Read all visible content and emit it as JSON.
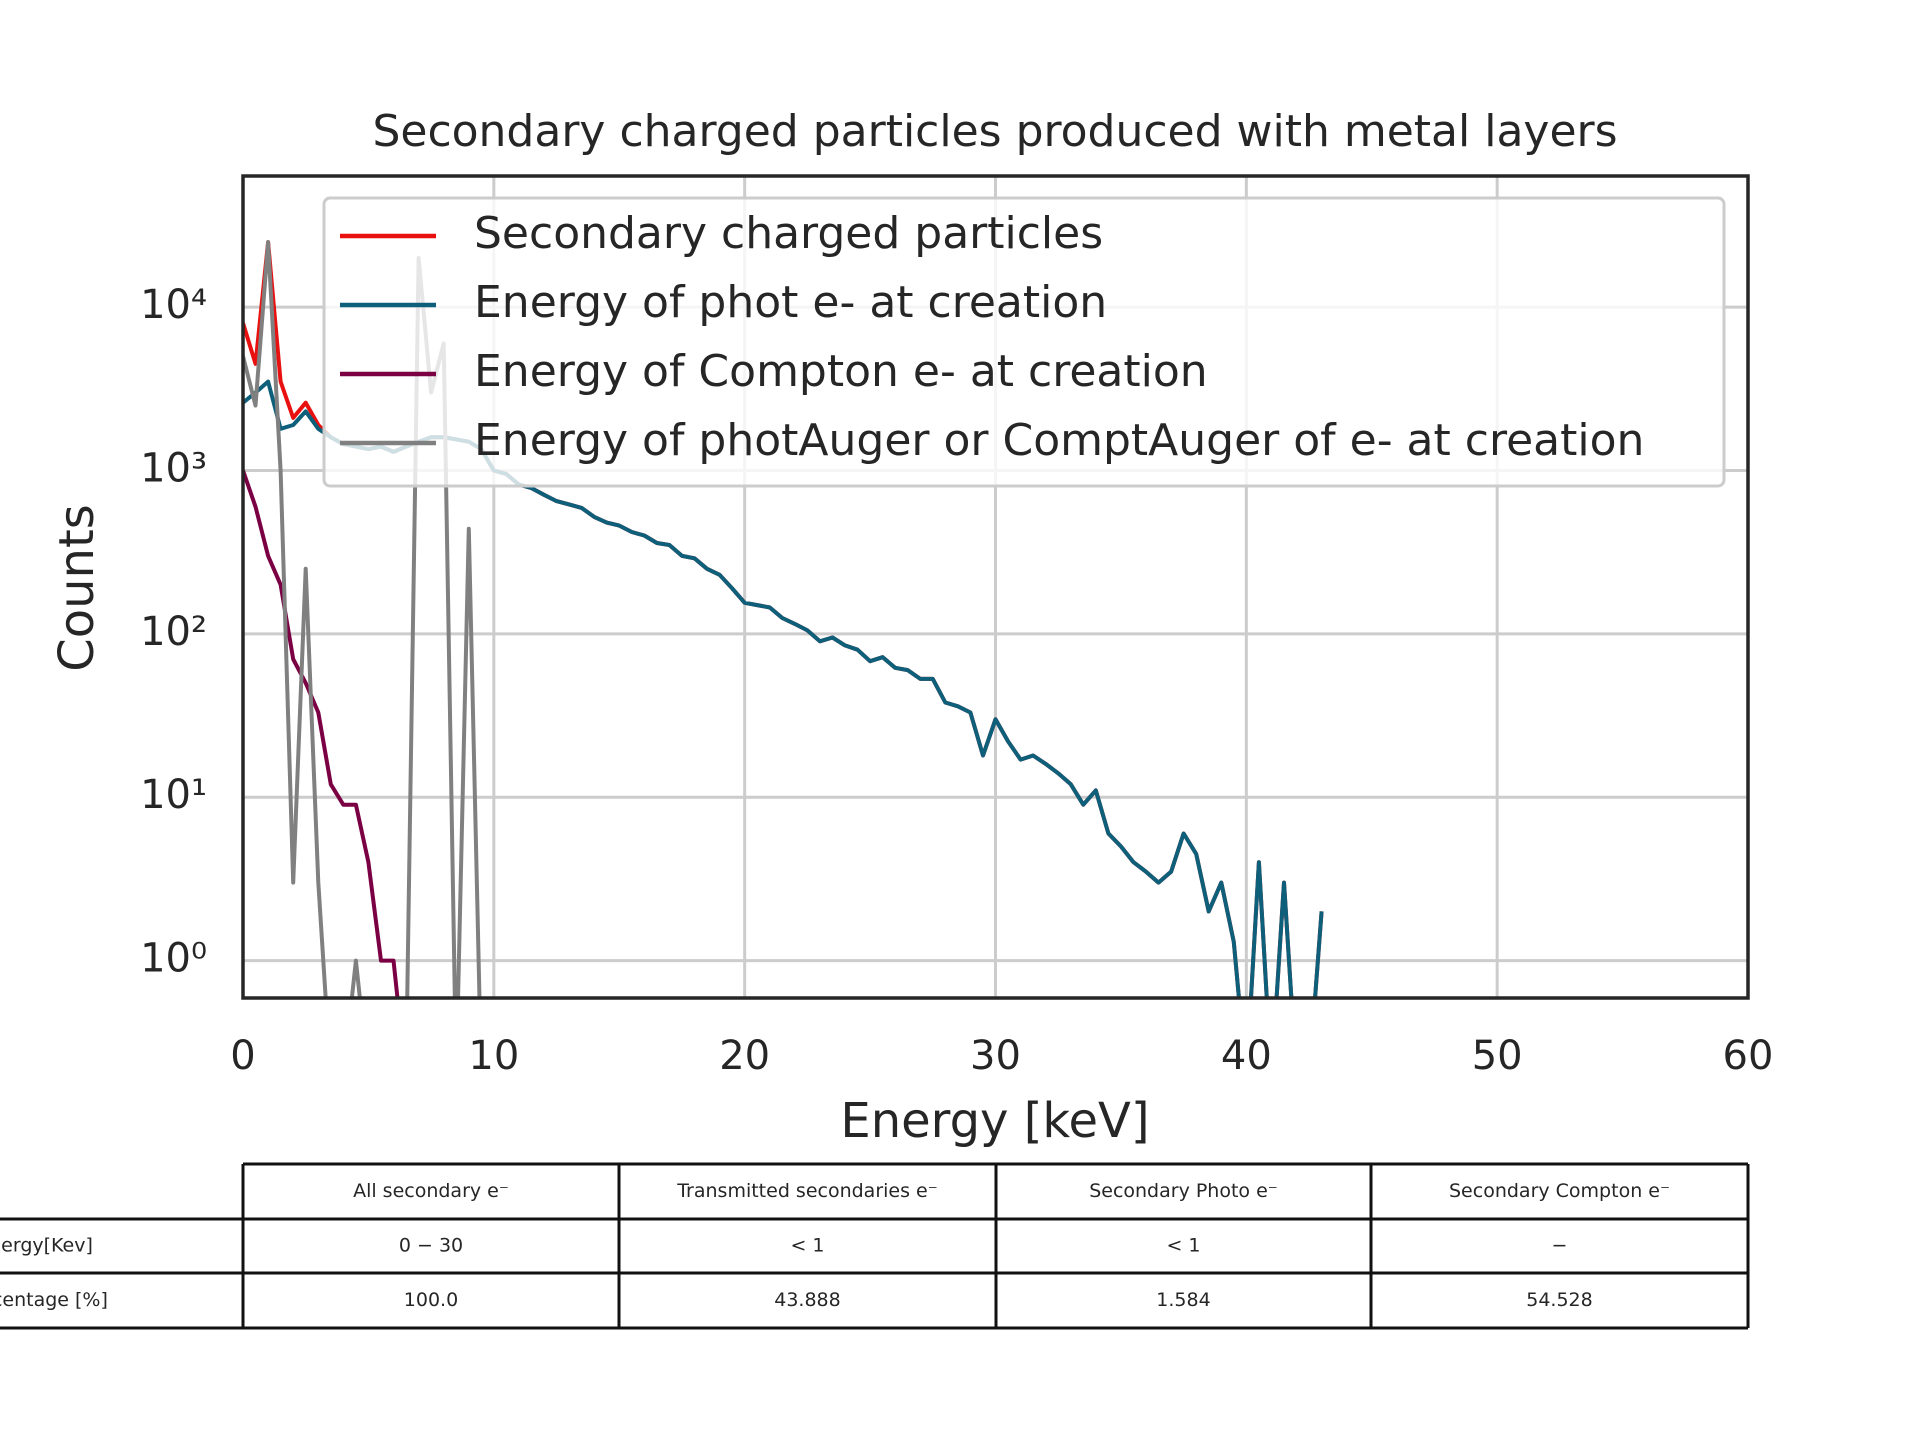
{
  "chart_data": {
    "type": "line",
    "title": "Secondary charged particles produced with metal layers",
    "x_label": "Energy [keV]",
    "y_label": "Counts",
    "log_scale_y": true,
    "grid": true,
    "legend": "upper right",
    "x": [
      0,
      0.5,
      1,
      1.5,
      2,
      2.5,
      3,
      3.5,
      4,
      4.5,
      5,
      5.5,
      6,
      6.5,
      7,
      7.5,
      8,
      8.5,
      9,
      9.5,
      10,
      10.5,
      11,
      11.5,
      12,
      12.5,
      13,
      13.5,
      14,
      14.5,
      15,
      15.5,
      16,
      16.5,
      17,
      17.5,
      18,
      18.5,
      19,
      19.5,
      20,
      20.5,
      21,
      21.5,
      22,
      22.5,
      23,
      23.5,
      24,
      24.5,
      25,
      25.5,
      26,
      26.5,
      27,
      27.5,
      28,
      28.5,
      29,
      29.5,
      30,
      30.5,
      31,
      31.5,
      32,
      32.5,
      33,
      33.5,
      34,
      34.5,
      35,
      35.5,
      36,
      36.5,
      37,
      37.5,
      38,
      38.5,
      39,
      39.5,
      40,
      40.5,
      41,
      41.5,
      42,
      42.5,
      43
    ],
    "series": [
      {
        "name": "Secondary charged particles",
        "color": "#e8110f",
        "values": [
          8000,
          4500,
          25000,
          3500,
          2100,
          2600,
          1900,
          1600,
          1450,
          1400,
          1350,
          1400,
          1300,
          1400,
          1500,
          1600,
          1600,
          1550,
          1500,
          1350,
          1000,
          950,
          820,
          780,
          710,
          650,
          620,
          590,
          520,
          480,
          460,
          420,
          400,
          360,
          350,
          300,
          290,
          250,
          230,
          190,
          155,
          150,
          145,
          125,
          115,
          105,
          90,
          95,
          85,
          80,
          68,
          72,
          62,
          60,
          53,
          53,
          38,
          36,
          33,
          18,
          30,
          22,
          17,
          18,
          16,
          14,
          12,
          9,
          11,
          6,
          5,
          4,
          3.5,
          3,
          3.5,
          6,
          4.5,
          2,
          3,
          1.3,
          0,
          4,
          0,
          3,
          0,
          0,
          2
        ]
      },
      {
        "name": "Energy of phot e- at creation",
        "color": "#0d5f7a",
        "values": [
          2600,
          3000,
          3500,
          1800,
          1900,
          2300,
          1800,
          1600,
          1450,
          1400,
          1350,
          1400,
          1300,
          1400,
          1500,
          1600,
          1600,
          1550,
          1500,
          1350,
          1000,
          950,
          820,
          780,
          710,
          650,
          620,
          590,
          520,
          480,
          460,
          420,
          400,
          360,
          350,
          300,
          290,
          250,
          230,
          190,
          155,
          150,
          145,
          125,
          115,
          105,
          90,
          95,
          85,
          80,
          68,
          72,
          62,
          60,
          53,
          53,
          38,
          36,
          33,
          18,
          30,
          22,
          17,
          18,
          16,
          14,
          12,
          9,
          11,
          6,
          5,
          4,
          3.5,
          3,
          3.5,
          6,
          4.5,
          2,
          3,
          1.3,
          0,
          4,
          0,
          3,
          0,
          0,
          2
        ]
      },
      {
        "name": "Energy of Compton e- at creation",
        "color": "#7b0043",
        "values": [
          1000,
          600,
          300,
          200,
          70,
          50,
          33,
          12,
          9,
          9,
          4,
          1,
          1,
          0,
          null,
          null,
          null,
          null,
          null,
          null,
          null,
          null,
          null,
          null,
          null,
          null,
          null,
          null,
          null,
          null,
          null,
          null,
          null,
          null,
          null,
          null,
          null,
          null,
          null,
          null,
          null,
          null,
          null,
          null,
          null,
          null,
          null,
          null,
          null,
          null,
          null,
          null,
          null,
          null,
          null,
          null,
          null,
          null,
          null,
          null,
          null,
          null,
          null,
          null,
          null,
          null,
          null,
          null,
          null,
          null,
          null,
          null,
          null,
          null,
          null,
          null,
          null,
          null,
          null,
          null,
          null,
          null,
          null,
          null,
          null,
          null,
          null
        ]
      },
      {
        "name": "Energy of photAuger or ComptAuger of e- at creation",
        "color": "#808080",
        "values": [
          5000,
          2500,
          25000,
          1000,
          3,
          250,
          3,
          0,
          0,
          1,
          0,
          0,
          0,
          0,
          20000,
          3000,
          6000,
          0,
          440,
          0,
          null,
          null,
          null,
          null,
          null,
          null,
          null,
          null,
          null,
          null,
          null,
          null,
          null,
          null,
          null,
          null,
          null,
          null,
          null,
          null,
          null,
          null,
          null,
          null,
          null,
          null,
          null,
          null,
          null,
          null,
          null,
          null,
          null,
          null,
          null,
          null,
          null,
          null,
          null,
          null,
          null,
          null,
          null,
          null,
          null,
          null,
          null,
          null,
          null,
          null,
          null,
          null,
          null,
          null,
          null,
          null,
          null,
          null,
          null,
          null,
          null,
          null,
          null,
          null,
          null,
          null,
          null
        ]
      }
    ],
    "xlim": [
      0,
      60
    ],
    "xticks": [
      0,
      10,
      20,
      30,
      40,
      50,
      60
    ],
    "ylim": [
      0.59,
      63500
    ],
    "yticks": [
      {
        "value": 1,
        "label": "10⁰"
      },
      {
        "value": 10,
        "label": "10¹"
      },
      {
        "value": 100,
        "label": "10²"
      },
      {
        "value": 1000,
        "label": "10³"
      },
      {
        "value": 10000,
        "label": "10⁴"
      }
    ]
  },
  "table": {
    "header": [
      "All secondary e⁻",
      "Transmitted secondaries e⁻",
      "Secondary Photo e⁻",
      "Secondary Compton e⁻"
    ],
    "rows": [
      [
        "Energy[Kev]",
        "0 − 30",
        "< 1",
        "< 1",
        "−"
      ],
      [
        "Percentage [%]",
        "100.0",
        "43.888",
        "1.584",
        "54.528"
      ]
    ]
  }
}
